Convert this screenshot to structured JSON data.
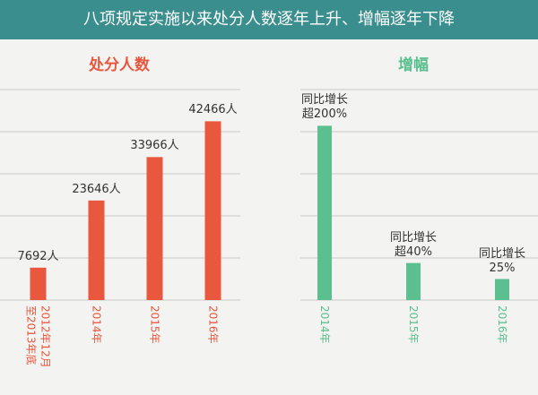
{
  "header": {
    "title": "八项规定实施以来处分人数逐年上升、增幅逐年下降"
  },
  "chart_data": [
    {
      "type": "bar",
      "title": "处分人数",
      "categories": [
        "2012年12月至2013年底",
        "2014年",
        "2015年",
        "2016年"
      ],
      "values": [
        7692,
        23646,
        33966,
        42466
      ],
      "value_labels": [
        "7692人",
        "23646人",
        "33966人",
        "42466人"
      ],
      "color": "#e8573e",
      "ylim": [
        0,
        50000
      ],
      "yticks": [
        0,
        10000,
        20000,
        30000,
        40000,
        50000
      ],
      "grid": true
    },
    {
      "type": "bar",
      "title": "增幅",
      "categories": [
        "2014年",
        "2015年",
        "2016年"
      ],
      "values": [
        207,
        44,
        25
      ],
      "value_labels": [
        "同比增长超200%",
        "同比增长超40%",
        "同比增长25%"
      ],
      "color": "#5bbf8f",
      "ylim": [
        0,
        250
      ],
      "yticks": [
        0,
        50,
        100,
        150,
        200,
        250
      ],
      "grid": true
    }
  ]
}
